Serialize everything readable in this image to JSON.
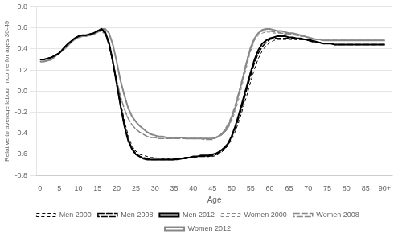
{
  "chart_data": {
    "type": "line",
    "x_label": "Age",
    "y_label": "Relative to average labour income for ages 30-49",
    "x": [
      0,
      1,
      2,
      3,
      4,
      5,
      6,
      7,
      8,
      9,
      10,
      11,
      12,
      13,
      14,
      15,
      16,
      17,
      18,
      19,
      20,
      21,
      22,
      23,
      24,
      25,
      26,
      27,
      28,
      29,
      30,
      31,
      32,
      33,
      34,
      35,
      36,
      37,
      38,
      39,
      40,
      41,
      42,
      43,
      44,
      45,
      46,
      47,
      48,
      49,
      50,
      51,
      52,
      53,
      54,
      55,
      56,
      57,
      58,
      59,
      60,
      61,
      62,
      63,
      64,
      65,
      66,
      67,
      68,
      69,
      70,
      71,
      72,
      73,
      74,
      75,
      76,
      77,
      78,
      79,
      80,
      81,
      82,
      83,
      84,
      85,
      86,
      87,
      88,
      89,
      90
    ],
    "series": [
      {
        "name": "Men 2000",
        "color": "#000000",
        "line_style": "dashed",
        "values": [
          0.3,
          0.3,
          0.31,
          0.32,
          0.34,
          0.36,
          0.4,
          0.44,
          0.47,
          0.5,
          0.52,
          0.53,
          0.53,
          0.54,
          0.55,
          0.57,
          0.58,
          0.55,
          0.45,
          0.3,
          0.1,
          -0.1,
          -0.28,
          -0.42,
          -0.52,
          -0.57,
          -0.6,
          -0.61,
          -0.62,
          -0.63,
          -0.63,
          -0.64,
          -0.64,
          -0.64,
          -0.64,
          -0.64,
          -0.64,
          -0.64,
          -0.63,
          -0.63,
          -0.62,
          -0.62,
          -0.62,
          -0.62,
          -0.62,
          -0.62,
          -0.61,
          -0.59,
          -0.56,
          -0.52,
          -0.46,
          -0.38,
          -0.28,
          -0.16,
          -0.04,
          0.09,
          0.21,
          0.31,
          0.38,
          0.43,
          0.46,
          0.48,
          0.49,
          0.49,
          0.49,
          0.49,
          0.49,
          0.49,
          0.49,
          0.49,
          0.48,
          0.47,
          0.46,
          0.46,
          0.45,
          0.45,
          0.45,
          0.44,
          0.44,
          0.44,
          0.44,
          0.44,
          0.44,
          0.44,
          0.44,
          0.44,
          0.44,
          0.44,
          0.44,
          0.44,
          0.44
        ]
      },
      {
        "name": "Men 2008",
        "color": "#000000",
        "line_style": "long_dashed",
        "values": [
          0.3,
          0.3,
          0.31,
          0.32,
          0.34,
          0.36,
          0.4,
          0.44,
          0.47,
          0.5,
          0.52,
          0.53,
          0.53,
          0.54,
          0.55,
          0.57,
          0.58,
          0.55,
          0.44,
          0.27,
          0.07,
          -0.13,
          -0.32,
          -0.46,
          -0.54,
          -0.59,
          -0.62,
          -0.63,
          -0.64,
          -0.65,
          -0.65,
          -0.65,
          -0.65,
          -0.65,
          -0.65,
          -0.65,
          -0.65,
          -0.64,
          -0.64,
          -0.63,
          -0.63,
          -0.62,
          -0.62,
          -0.62,
          -0.62,
          -0.61,
          -0.6,
          -0.58,
          -0.55,
          -0.51,
          -0.44,
          -0.35,
          -0.24,
          -0.11,
          0.02,
          0.15,
          0.27,
          0.36,
          0.42,
          0.46,
          0.49,
          0.5,
          0.5,
          0.5,
          0.5,
          0.5,
          0.5,
          0.49,
          0.49,
          0.49,
          0.48,
          0.47,
          0.46,
          0.46,
          0.45,
          0.45,
          0.45,
          0.44,
          0.44,
          0.44,
          0.44,
          0.44,
          0.44,
          0.44,
          0.44,
          0.44,
          0.44,
          0.44,
          0.44,
          0.44,
          0.44
        ]
      },
      {
        "name": "Men 2012",
        "color": "#000000",
        "line_style": "solid",
        "values": [
          0.3,
          0.3,
          0.31,
          0.32,
          0.34,
          0.36,
          0.4,
          0.44,
          0.47,
          0.5,
          0.52,
          0.53,
          0.53,
          0.54,
          0.55,
          0.57,
          0.59,
          0.56,
          0.46,
          0.28,
          0.07,
          -0.14,
          -0.33,
          -0.47,
          -0.55,
          -0.6,
          -0.62,
          -0.64,
          -0.65,
          -0.65,
          -0.65,
          -0.65,
          -0.65,
          -0.65,
          -0.65,
          -0.65,
          -0.64,
          -0.64,
          -0.63,
          -0.63,
          -0.62,
          -0.62,
          -0.61,
          -0.61,
          -0.61,
          -0.6,
          -0.59,
          -0.57,
          -0.54,
          -0.5,
          -0.43,
          -0.33,
          -0.21,
          -0.08,
          0.05,
          0.18,
          0.3,
          0.39,
          0.45,
          0.48,
          0.5,
          0.51,
          0.52,
          0.52,
          0.52,
          0.51,
          0.51,
          0.5,
          0.5,
          0.49,
          0.49,
          0.48,
          0.47,
          0.46,
          0.45,
          0.45,
          0.45,
          0.44,
          0.44,
          0.44,
          0.44,
          0.44,
          0.44,
          0.44,
          0.44,
          0.44,
          0.44,
          0.44,
          0.44,
          0.44,
          0.44
        ]
      },
      {
        "name": "Women 2000",
        "color": "#888888",
        "line_style": "dashed",
        "values": [
          0.28,
          0.28,
          0.29,
          0.3,
          0.33,
          0.36,
          0.39,
          0.42,
          0.46,
          0.49,
          0.51,
          0.52,
          0.52,
          0.53,
          0.54,
          0.56,
          0.57,
          0.54,
          0.44,
          0.28,
          0.1,
          -0.05,
          -0.17,
          -0.26,
          -0.32,
          -0.36,
          -0.39,
          -0.41,
          -0.43,
          -0.44,
          -0.44,
          -0.45,
          -0.45,
          -0.45,
          -0.45,
          -0.45,
          -0.45,
          -0.45,
          -0.45,
          -0.45,
          -0.45,
          -0.45,
          -0.45,
          -0.45,
          -0.45,
          -0.45,
          -0.44,
          -0.43,
          -0.4,
          -0.36,
          -0.29,
          -0.19,
          -0.06,
          0.09,
          0.24,
          0.38,
          0.48,
          0.53,
          0.55,
          0.56,
          0.56,
          0.55,
          0.55,
          0.55,
          0.54,
          0.54,
          0.53,
          0.53,
          0.52,
          0.52,
          0.51,
          0.5,
          0.49,
          0.49,
          0.48,
          0.48,
          0.48,
          0.48,
          0.48,
          0.48,
          0.48,
          0.48,
          0.48,
          0.48,
          0.48,
          0.48,
          0.48,
          0.48,
          0.48,
          0.48,
          0.48
        ]
      },
      {
        "name": "Women 2008",
        "color": "#888888",
        "line_style": "long_dashed",
        "values": [
          0.28,
          0.28,
          0.29,
          0.3,
          0.33,
          0.36,
          0.39,
          0.42,
          0.46,
          0.49,
          0.51,
          0.52,
          0.52,
          0.53,
          0.54,
          0.56,
          0.57,
          0.54,
          0.44,
          0.28,
          0.1,
          -0.05,
          -0.17,
          -0.26,
          -0.32,
          -0.36,
          -0.39,
          -0.41,
          -0.43,
          -0.44,
          -0.44,
          -0.45,
          -0.45,
          -0.45,
          -0.45,
          -0.45,
          -0.45,
          -0.45,
          -0.45,
          -0.45,
          -0.45,
          -0.45,
          -0.45,
          -0.46,
          -0.46,
          -0.46,
          -0.44,
          -0.42,
          -0.38,
          -0.32,
          -0.24,
          -0.13,
          0.0,
          0.14,
          0.29,
          0.42,
          0.5,
          0.55,
          0.57,
          0.57,
          0.57,
          0.56,
          0.56,
          0.55,
          0.55,
          0.54,
          0.54,
          0.53,
          0.52,
          0.52,
          0.51,
          0.5,
          0.49,
          0.49,
          0.48,
          0.48,
          0.48,
          0.48,
          0.48,
          0.48,
          0.48,
          0.48,
          0.48,
          0.48,
          0.48,
          0.48,
          0.48,
          0.48,
          0.48,
          0.48,
          0.48
        ]
      },
      {
        "name": "Women 2012",
        "color": "#888888",
        "line_style": "solid",
        "values": [
          0.28,
          0.28,
          0.29,
          0.3,
          0.33,
          0.36,
          0.39,
          0.42,
          0.46,
          0.49,
          0.51,
          0.52,
          0.52,
          0.53,
          0.54,
          0.56,
          0.59,
          0.59,
          0.55,
          0.44,
          0.28,
          0.1,
          -0.04,
          -0.16,
          -0.24,
          -0.29,
          -0.33,
          -0.36,
          -0.39,
          -0.41,
          -0.42,
          -0.43,
          -0.43,
          -0.44,
          -0.44,
          -0.44,
          -0.44,
          -0.44,
          -0.45,
          -0.45,
          -0.45,
          -0.45,
          -0.45,
          -0.45,
          -0.45,
          -0.45,
          -0.44,
          -0.42,
          -0.39,
          -0.34,
          -0.26,
          -0.15,
          -0.01,
          0.13,
          0.28,
          0.41,
          0.5,
          0.55,
          0.58,
          0.59,
          0.59,
          0.58,
          0.57,
          0.57,
          0.56,
          0.55,
          0.55,
          0.54,
          0.53,
          0.52,
          0.51,
          0.5,
          0.49,
          0.49,
          0.48,
          0.48,
          0.48,
          0.48,
          0.48,
          0.48,
          0.48,
          0.48,
          0.48,
          0.48,
          0.48,
          0.48,
          0.48,
          0.48,
          0.48,
          0.48,
          0.48
        ]
      }
    ],
    "xlim": [
      -1,
      92
    ],
    "xticks": [
      0,
      5,
      10,
      15,
      20,
      25,
      30,
      35,
      40,
      45,
      50,
      55,
      60,
      65,
      70,
      75,
      80,
      85,
      {
        "value": 90,
        "label": "90+"
      }
    ],
    "ylim": [
      -0.8,
      0.8
    ],
    "yticks": [
      -0.8,
      -0.6,
      -0.4,
      -0.2,
      {
        "value": 0.0,
        "label": "0.0"
      },
      0.2,
      0.4,
      0.6,
      0.8
    ],
    "grid": "y",
    "legend": "bottom"
  }
}
